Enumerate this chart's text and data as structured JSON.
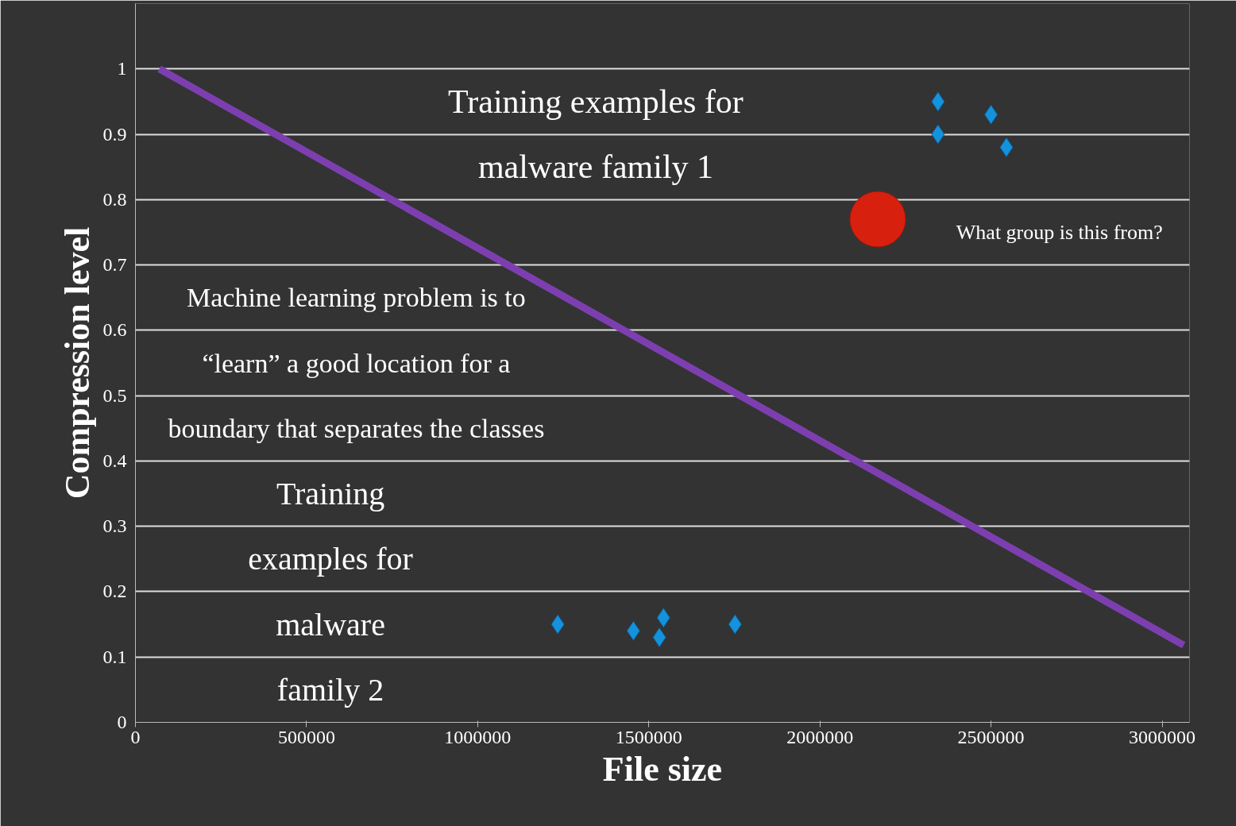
{
  "chart_data": {
    "type": "scatter",
    "xlabel": "File size",
    "ylabel": "Compression level",
    "xlim": [
      0,
      3080000
    ],
    "ylim": [
      0,
      1.1
    ],
    "xticks": [
      0,
      500000,
      1000000,
      1500000,
      2000000,
      2500000,
      3000000
    ],
    "yticks": [
      0,
      0.1,
      0.2,
      0.3,
      0.4,
      0.5,
      0.6,
      0.7,
      0.8,
      0.9,
      1
    ],
    "grid": "y",
    "series": [
      {
        "color": "#1592dc",
        "marker": "diamond",
        "x": [
          2345000,
          2345000,
          2500000,
          2545000
        ],
        "values": [
          0.95,
          0.9,
          0.93,
          0.88
        ]
      },
      {
        "color": "#1592dc",
        "marker": "diamond",
        "x": [
          1234000,
          1455000,
          1543000,
          1531000,
          1752000
        ],
        "values": [
          0.15,
          0.14,
          0.16,
          0.13,
          0.15
        ]
      },
      {
        "color": "#d8200f",
        "marker": "circle",
        "x": [
          2169000
        ],
        "values": [
          0.77
        ]
      },
      {
        "type": "line",
        "color": "#7d3fb0",
        "marker": "none",
        "x": [
          70000,
          3063000
        ],
        "values": [
          1.0,
          0.118
        ]
      }
    ],
    "annotations": [
      "Training examples for malware family 1",
      "Machine learning problem is to “learn” a good location for a boundary that separates the classes",
      "Training examples for malware family 2",
      "What group is this from?"
    ]
  }
}
